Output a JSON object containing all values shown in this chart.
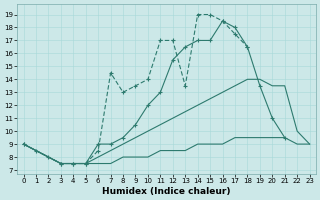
{
  "xlabel": "Humidex (Indice chaleur)",
  "bg_color": "#cce8e8",
  "line_color": "#2d7a6e",
  "xlim": [
    -0.5,
    23.5
  ],
  "ylim": [
    6.7,
    19.8
  ],
  "yticks": [
    7,
    8,
    9,
    10,
    11,
    12,
    13,
    14,
    15,
    16,
    17,
    18,
    19
  ],
  "xticks": [
    0,
    1,
    2,
    3,
    4,
    5,
    6,
    7,
    8,
    9,
    10,
    11,
    12,
    13,
    14,
    15,
    16,
    17,
    18,
    19,
    20,
    21,
    22,
    23
  ],
  "line1_x": [
    0,
    1,
    2,
    3,
    4,
    5,
    6,
    7,
    8,
    9,
    10,
    11,
    12,
    13,
    14,
    15,
    16,
    17,
    18,
    19,
    20,
    21,
    22,
    23
  ],
  "line1_y": [
    9,
    8.5,
    8,
    7.5,
    7.5,
    7.5,
    7.5,
    7.5,
    8,
    8,
    8,
    8.5,
    8.5,
    8.5,
    9,
    9,
    9,
    9.5,
    9.5,
    9.5,
    9.5,
    9.5,
    9,
    9
  ],
  "line2_x": [
    0,
    1,
    2,
    3,
    4,
    5,
    6,
    7,
    8,
    9,
    10,
    11,
    12,
    13,
    14,
    15,
    16,
    17,
    18,
    19,
    20,
    21,
    22,
    23
  ],
  "line2_y": [
    9,
    8.5,
    8,
    7.5,
    7.5,
    7.5,
    8,
    8.5,
    9,
    9.5,
    10,
    10.5,
    11,
    11.5,
    12,
    12.5,
    13,
    13.5,
    14,
    14,
    13.5,
    13.5,
    10,
    9
  ],
  "line3_x": [
    0,
    1,
    2,
    3,
    4,
    5,
    6,
    7,
    8,
    9,
    10,
    11,
    12,
    13,
    14,
    15,
    16,
    17,
    18,
    19,
    20,
    21
  ],
  "line3_y": [
    9,
    8.5,
    8,
    7.5,
    7.5,
    7.5,
    9,
    9,
    9.5,
    10.5,
    12,
    13,
    15.5,
    16.5,
    17,
    17,
    18.5,
    18,
    16.5,
    13.5,
    11,
    9.5
  ],
  "line4_x": [
    0,
    3,
    4,
    5,
    6,
    7,
    8,
    9,
    10,
    11,
    12,
    13,
    14,
    15,
    16,
    17,
    18
  ],
  "line4_y": [
    9,
    7.5,
    7.5,
    7.5,
    8.5,
    14.5,
    13,
    13.5,
    14,
    17,
    17,
    13.5,
    19,
    19,
    18.5,
    17.5,
    16.5
  ]
}
